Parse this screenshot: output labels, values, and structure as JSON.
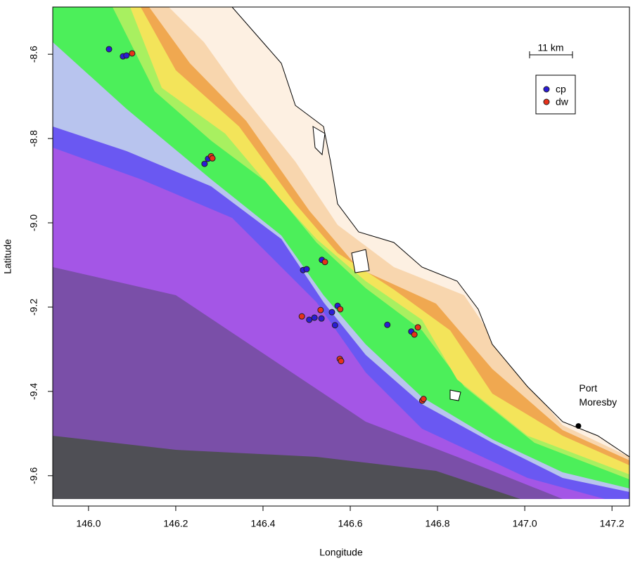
{
  "chart_data": {
    "type": "scatter",
    "xlabel": "Longitude",
    "ylabel": "Latitude",
    "xlim": [
      145.918,
      147.24
    ],
    "ylim": [
      -9.672,
      -8.488
    ],
    "xticks": [
      {
        "value": 146,
        "label": "146.0"
      },
      146.2,
      146.4,
      146.6,
      146.8,
      {
        "value": 147,
        "label": "147.0"
      },
      147.2
    ],
    "yticks": [
      -8.6,
      -8.8,
      {
        "value": -9,
        "label": "-9.0"
      },
      -9.2,
      -9.4,
      -9.6
    ],
    "legend_position": "top-right",
    "scale_bar": "11 km",
    "place": {
      "lines": [
        "Port",
        "Moresby"
      ],
      "x": 147.123,
      "y": -9.482
    },
    "series": [
      {
        "name": "cp",
        "color": "#2b1bd6",
        "x": [
          146.047,
          146.079,
          146.087,
          146.266,
          146.274,
          146.492,
          146.5,
          146.535,
          146.506,
          146.518,
          146.534,
          146.558,
          146.571,
          146.565,
          146.685,
          146.74
        ],
        "y": [
          -8.588,
          -8.605,
          -8.603,
          -8.86,
          -8.848,
          -9.112,
          -9.11,
          -9.088,
          -9.23,
          -9.225,
          -9.227,
          -9.212,
          -9.197,
          -9.243,
          -9.242,
          -9.258
        ]
      },
      {
        "name": "dw",
        "color": "#e8311a",
        "x": [
          146.1,
          146.281,
          146.284,
          146.542,
          146.489,
          146.532,
          146.577,
          146.576,
          146.579,
          146.747,
          146.755,
          146.765,
          146.768
        ],
        "y": [
          -8.598,
          -8.842,
          -8.847,
          -9.093,
          -9.222,
          -9.207,
          -9.205,
          -9.323,
          -9.328,
          -9.265,
          -9.248,
          -9.422,
          -9.418
        ]
      }
    ]
  }
}
